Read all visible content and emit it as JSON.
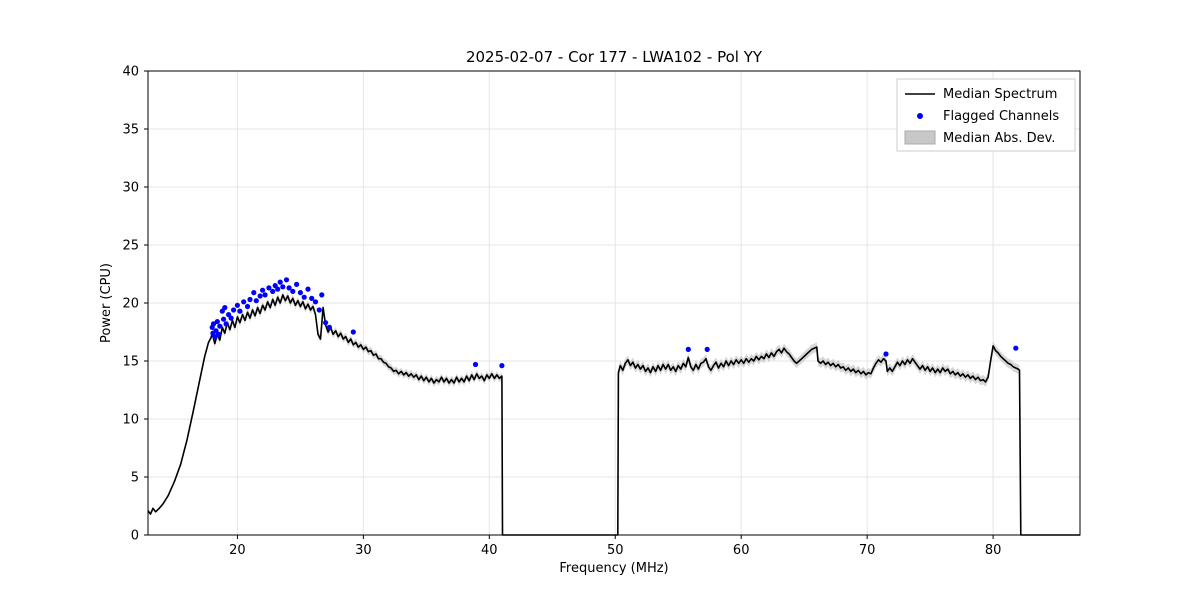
{
  "chart_data": {
    "type": "line",
    "title": "2025-02-07 - Cor 177 - LWA102 - Pol YY",
    "xlabel": "Frequency (MHz)",
    "ylabel": "Power (CPU)",
    "xlim": [
      12.9,
      86.9
    ],
    "ylim": [
      0,
      40
    ],
    "xticks": [
      20,
      30,
      40,
      50,
      60,
      70,
      80
    ],
    "yticks": [
      0,
      5,
      10,
      15,
      20,
      25,
      30,
      35,
      40
    ],
    "grid": true,
    "colors": {
      "median_line": "#000000",
      "flagged": "#0000ff",
      "mad_band": "#c0c0c0",
      "grid": "#e6e6e6",
      "spine": "#000000"
    },
    "legend": {
      "position": "upper right",
      "entries": [
        {
          "label": "Median Spectrum",
          "type": "line",
          "color": "#000000"
        },
        {
          "label": "Flagged Channels",
          "type": "dot",
          "color": "#0000ff"
        },
        {
          "label": "Median Abs. Dev.",
          "type": "patch",
          "color": "#c8c8c8"
        }
      ]
    },
    "mad_band": [
      {
        "xmin": 17.9,
        "xmax": 41.0,
        "halfwidth": 0.32
      },
      {
        "xmin": 50.25,
        "xmax": 82.1,
        "halfwidth": 0.4
      }
    ],
    "median_spectrum": [
      [
        12.9,
        2.1
      ],
      [
        13.1,
        1.8
      ],
      [
        13.3,
        2.3
      ],
      [
        13.5,
        2.0
      ],
      [
        13.8,
        2.3
      ],
      [
        14.1,
        2.7
      ],
      [
        14.5,
        3.4
      ],
      [
        15.0,
        4.6
      ],
      [
        15.5,
        6.1
      ],
      [
        16.0,
        8.2
      ],
      [
        16.5,
        10.7
      ],
      [
        17.0,
        13.3
      ],
      [
        17.4,
        15.4
      ],
      [
        17.7,
        16.6
      ],
      [
        17.9,
        17.0
      ],
      [
        18.0,
        17.4
      ],
      [
        18.2,
        16.5
      ],
      [
        18.4,
        17.3
      ],
      [
        18.6,
        16.8
      ],
      [
        18.8,
        17.9
      ],
      [
        19.0,
        17.4
      ],
      [
        19.2,
        18.3
      ],
      [
        19.4,
        17.7
      ],
      [
        19.6,
        18.5
      ],
      [
        19.8,
        17.9
      ],
      [
        20.0,
        18.8
      ],
      [
        20.2,
        18.3
      ],
      [
        20.4,
        19.0
      ],
      [
        20.6,
        18.5
      ],
      [
        20.8,
        19.2
      ],
      [
        21.0,
        18.7
      ],
      [
        21.2,
        19.4
      ],
      [
        21.4,
        18.9
      ],
      [
        21.6,
        19.6
      ],
      [
        21.8,
        19.1
      ],
      [
        22.0,
        19.8
      ],
      [
        22.2,
        19.4
      ],
      [
        22.4,
        20.1
      ],
      [
        22.6,
        19.6
      ],
      [
        22.8,
        20.3
      ],
      [
        23.0,
        19.8
      ],
      [
        23.2,
        20.5
      ],
      [
        23.4,
        20.0
      ],
      [
        23.6,
        20.7
      ],
      [
        23.8,
        20.2
      ],
      [
        24.0,
        20.6
      ],
      [
        24.2,
        20.0
      ],
      [
        24.4,
        20.4
      ],
      [
        24.6,
        19.8
      ],
      [
        24.8,
        20.2
      ],
      [
        25.0,
        19.7
      ],
      [
        25.2,
        20.1
      ],
      [
        25.4,
        19.5
      ],
      [
        25.6,
        19.9
      ],
      [
        25.8,
        19.4
      ],
      [
        26.0,
        19.7
      ],
      [
        26.2,
        19.0
      ],
      [
        26.4,
        17.3
      ],
      [
        26.6,
        16.9
      ],
      [
        26.8,
        19.6
      ],
      [
        27.0,
        18.1
      ],
      [
        27.2,
        17.5
      ],
      [
        27.4,
        17.9
      ],
      [
        27.6,
        17.3
      ],
      [
        27.8,
        17.6
      ],
      [
        28.0,
        17.1
      ],
      [
        28.2,
        17.4
      ],
      [
        28.4,
        16.9
      ],
      [
        28.6,
        17.1
      ],
      [
        28.8,
        16.6
      ],
      [
        29.0,
        16.9
      ],
      [
        29.2,
        16.4
      ],
      [
        29.4,
        16.6
      ],
      [
        29.6,
        16.2
      ],
      [
        29.8,
        16.4
      ],
      [
        30.0,
        16.0
      ],
      [
        30.2,
        16.2
      ],
      [
        30.4,
        15.8
      ],
      [
        30.6,
        15.9
      ],
      [
        30.8,
        15.5
      ],
      [
        31.0,
        15.6
      ],
      [
        31.2,
        15.2
      ],
      [
        31.4,
        15.2
      ],
      [
        31.6,
        14.9
      ],
      [
        31.8,
        14.8
      ],
      [
        32.0,
        14.5
      ],
      [
        32.2,
        14.4
      ],
      [
        32.4,
        14.1
      ],
      [
        32.6,
        14.2
      ],
      [
        32.8,
        13.9
      ],
      [
        33.0,
        14.1
      ],
      [
        33.2,
        13.8
      ],
      [
        33.4,
        14.0
      ],
      [
        33.6,
        13.7
      ],
      [
        33.8,
        13.9
      ],
      [
        34.0,
        13.6
      ],
      [
        34.2,
        13.8
      ],
      [
        34.4,
        13.4
      ],
      [
        34.6,
        13.7
      ],
      [
        34.8,
        13.3
      ],
      [
        35.0,
        13.6
      ],
      [
        35.2,
        13.2
      ],
      [
        35.4,
        13.5
      ],
      [
        35.6,
        13.1
      ],
      [
        35.8,
        13.4
      ],
      [
        36.0,
        13.2
      ],
      [
        36.2,
        13.6
      ],
      [
        36.4,
        13.2
      ],
      [
        36.6,
        13.5
      ],
      [
        36.8,
        13.1
      ],
      [
        37.0,
        13.4
      ],
      [
        37.2,
        13.1
      ],
      [
        37.4,
        13.6
      ],
      [
        37.6,
        13.2
      ],
      [
        37.8,
        13.5
      ],
      [
        38.0,
        13.2
      ],
      [
        38.2,
        13.7
      ],
      [
        38.4,
        13.3
      ],
      [
        38.6,
        13.8
      ],
      [
        38.8,
        13.4
      ],
      [
        39.0,
        13.9
      ],
      [
        39.2,
        13.5
      ],
      [
        39.4,
        13.7
      ],
      [
        39.6,
        13.3
      ],
      [
        39.8,
        13.8
      ],
      [
        40.0,
        13.5
      ],
      [
        40.2,
        13.9
      ],
      [
        40.4,
        13.5
      ],
      [
        40.6,
        13.8
      ],
      [
        40.8,
        13.5
      ],
      [
        41.0,
        13.7
      ],
      [
        41.05,
        0
      ],
      [
        50.2,
        0
      ],
      [
        50.25,
        14.0
      ],
      [
        50.4,
        14.6
      ],
      [
        50.6,
        14.2
      ],
      [
        50.8,
        14.8
      ],
      [
        51.0,
        15.1
      ],
      [
        51.2,
        14.6
      ],
      [
        51.4,
        14.9
      ],
      [
        51.6,
        14.4
      ],
      [
        51.8,
        14.7
      ],
      [
        52.0,
        14.3
      ],
      [
        52.2,
        14.6
      ],
      [
        52.4,
        14.1
      ],
      [
        52.6,
        14.4
      ],
      [
        52.8,
        14.0
      ],
      [
        53.0,
        14.5
      ],
      [
        53.2,
        14.1
      ],
      [
        53.4,
        14.6
      ],
      [
        53.6,
        14.2
      ],
      [
        53.8,
        14.7
      ],
      [
        54.0,
        14.3
      ],
      [
        54.2,
        14.7
      ],
      [
        54.4,
        14.2
      ],
      [
        54.6,
        14.5
      ],
      [
        54.8,
        14.1
      ],
      [
        55.0,
        14.6
      ],
      [
        55.2,
        14.3
      ],
      [
        55.4,
        14.8
      ],
      [
        55.6,
        14.5
      ],
      [
        55.8,
        15.3
      ],
      [
        56.0,
        14.5
      ],
      [
        56.2,
        14.2
      ],
      [
        56.4,
        14.7
      ],
      [
        56.6,
        14.3
      ],
      [
        56.8,
        14.8
      ],
      [
        57.0,
        14.9
      ],
      [
        57.2,
        15.2
      ],
      [
        57.4,
        14.5
      ],
      [
        57.6,
        14.2
      ],
      [
        57.8,
        14.6
      ],
      [
        58.0,
        14.9
      ],
      [
        58.2,
        14.4
      ],
      [
        58.4,
        14.8
      ],
      [
        58.6,
        14.5
      ],
      [
        58.8,
        15.0
      ],
      [
        59.0,
        14.6
      ],
      [
        59.2,
        15.0
      ],
      [
        59.4,
        14.7
      ],
      [
        59.6,
        15.1
      ],
      [
        59.8,
        14.8
      ],
      [
        60.0,
        15.1
      ],
      [
        60.2,
        14.8
      ],
      [
        60.4,
        15.2
      ],
      [
        60.6,
        14.9
      ],
      [
        60.8,
        15.2
      ],
      [
        61.0,
        15.0
      ],
      [
        61.2,
        15.4
      ],
      [
        61.4,
        15.1
      ],
      [
        61.6,
        15.4
      ],
      [
        61.8,
        15.2
      ],
      [
        62.0,
        15.6
      ],
      [
        62.2,
        15.3
      ],
      [
        62.4,
        15.7
      ],
      [
        62.6,
        15.4
      ],
      [
        62.8,
        15.8
      ],
      [
        63.0,
        16.0
      ],
      [
        63.2,
        15.7
      ],
      [
        63.4,
        16.1
      ],
      [
        63.6,
        15.8
      ],
      [
        63.8,
        15.6
      ],
      [
        64.0,
        15.3
      ],
      [
        64.2,
        15.0
      ],
      [
        64.4,
        14.8
      ],
      [
        64.6,
        15.0
      ],
      [
        64.8,
        15.2
      ],
      [
        65.0,
        15.4
      ],
      [
        65.2,
        15.6
      ],
      [
        65.4,
        15.8
      ],
      [
        65.6,
        16.0
      ],
      [
        65.8,
        16.1
      ],
      [
        66.0,
        16.2
      ],
      [
        66.1,
        15.0
      ],
      [
        66.3,
        14.8
      ],
      [
        66.5,
        15.0
      ],
      [
        66.7,
        14.7
      ],
      [
        66.9,
        14.9
      ],
      [
        67.1,
        14.6
      ],
      [
        67.3,
        14.8
      ],
      [
        67.5,
        14.5
      ],
      [
        67.7,
        14.7
      ],
      [
        67.9,
        14.4
      ],
      [
        68.1,
        14.5
      ],
      [
        68.3,
        14.2
      ],
      [
        68.5,
        14.4
      ],
      [
        68.7,
        14.1
      ],
      [
        68.9,
        14.3
      ],
      [
        69.1,
        14.0
      ],
      [
        69.3,
        14.2
      ],
      [
        69.5,
        13.9
      ],
      [
        69.7,
        14.1
      ],
      [
        69.9,
        13.8
      ],
      [
        70.1,
        14.0
      ],
      [
        70.3,
        13.9
      ],
      [
        70.5,
        14.4
      ],
      [
        70.7,
        14.8
      ],
      [
        70.9,
        15.1
      ],
      [
        71.1,
        14.9
      ],
      [
        71.3,
        15.2
      ],
      [
        71.5,
        15.0
      ],
      [
        71.6,
        14.1
      ],
      [
        71.8,
        14.4
      ],
      [
        72.0,
        14.1
      ],
      [
        72.2,
        14.5
      ],
      [
        72.4,
        14.9
      ],
      [
        72.6,
        14.6
      ],
      [
        72.8,
        15.0
      ],
      [
        73.0,
        14.7
      ],
      [
        73.2,
        15.1
      ],
      [
        73.4,
        14.8
      ],
      [
        73.6,
        15.2
      ],
      [
        73.8,
        14.9
      ],
      [
        74.0,
        14.6
      ],
      [
        74.2,
        14.3
      ],
      [
        74.4,
        14.6
      ],
      [
        74.6,
        14.2
      ],
      [
        74.8,
        14.5
      ],
      [
        75.0,
        14.1
      ],
      [
        75.2,
        14.4
      ],
      [
        75.4,
        14.0
      ],
      [
        75.6,
        14.3
      ],
      [
        75.8,
        14.0
      ],
      [
        76.0,
        14.4
      ],
      [
        76.2,
        14.1
      ],
      [
        76.4,
        14.3
      ],
      [
        76.6,
        13.9
      ],
      [
        76.8,
        14.1
      ],
      [
        77.0,
        13.8
      ],
      [
        77.2,
        14.0
      ],
      [
        77.4,
        13.7
      ],
      [
        77.6,
        13.9
      ],
      [
        77.8,
        13.6
      ],
      [
        78.0,
        13.8
      ],
      [
        78.2,
        13.5
      ],
      [
        78.4,
        13.7
      ],
      [
        78.6,
        13.4
      ],
      [
        78.8,
        13.6
      ],
      [
        79.0,
        13.3
      ],
      [
        79.2,
        13.4
      ],
      [
        79.4,
        13.2
      ],
      [
        79.6,
        13.6
      ],
      [
        79.8,
        15.0
      ],
      [
        80.0,
        16.3
      ],
      [
        80.2,
        15.9
      ],
      [
        80.4,
        15.7
      ],
      [
        80.6,
        15.4
      ],
      [
        80.8,
        15.2
      ],
      [
        81.0,
        15.0
      ],
      [
        81.2,
        14.8
      ],
      [
        81.4,
        14.7
      ],
      [
        81.6,
        14.5
      ],
      [
        81.8,
        14.4
      ],
      [
        82.0,
        14.3
      ],
      [
        82.1,
        14.2
      ],
      [
        82.2,
        0
      ],
      [
        86.9,
        0
      ]
    ],
    "flagged_channels": [
      [
        18.0,
        17.9
      ],
      [
        18.05,
        17.4
      ],
      [
        18.1,
        18.2
      ],
      [
        18.2,
        17.1
      ],
      [
        18.3,
        17.6
      ],
      [
        18.4,
        18.4
      ],
      [
        18.5,
        17.3
      ],
      [
        18.6,
        18.0
      ],
      [
        18.8,
        19.3
      ],
      [
        18.9,
        18.6
      ],
      [
        19.0,
        19.6
      ],
      [
        19.1,
        18.2
      ],
      [
        19.3,
        19.0
      ],
      [
        19.5,
        18.7
      ],
      [
        19.7,
        19.4
      ],
      [
        20.0,
        19.8
      ],
      [
        20.2,
        19.3
      ],
      [
        20.5,
        20.1
      ],
      [
        20.8,
        19.7
      ],
      [
        21.0,
        20.3
      ],
      [
        21.3,
        20.9
      ],
      [
        21.5,
        20.2
      ],
      [
        21.8,
        20.6
      ],
      [
        22.0,
        21.1
      ],
      [
        22.2,
        20.7
      ],
      [
        22.5,
        21.3
      ],
      [
        22.8,
        21.0
      ],
      [
        23.0,
        21.5
      ],
      [
        23.2,
        21.2
      ],
      [
        23.4,
        21.8
      ],
      [
        23.6,
        21.4
      ],
      [
        23.9,
        22.0
      ],
      [
        24.1,
        21.3
      ],
      [
        24.4,
        21.0
      ],
      [
        24.7,
        21.6
      ],
      [
        25.0,
        20.9
      ],
      [
        25.3,
        20.5
      ],
      [
        25.6,
        21.2
      ],
      [
        25.9,
        20.4
      ],
      [
        26.2,
        20.1
      ],
      [
        26.5,
        19.4
      ],
      [
        26.7,
        20.7
      ],
      [
        27.0,
        18.3
      ],
      [
        27.3,
        17.9
      ],
      [
        29.2,
        17.5
      ],
      [
        38.9,
        14.7
      ],
      [
        41.0,
        14.6
      ],
      [
        55.8,
        16.0
      ],
      [
        57.3,
        16.0
      ],
      [
        71.5,
        15.6
      ],
      [
        81.8,
        16.1
      ]
    ]
  }
}
